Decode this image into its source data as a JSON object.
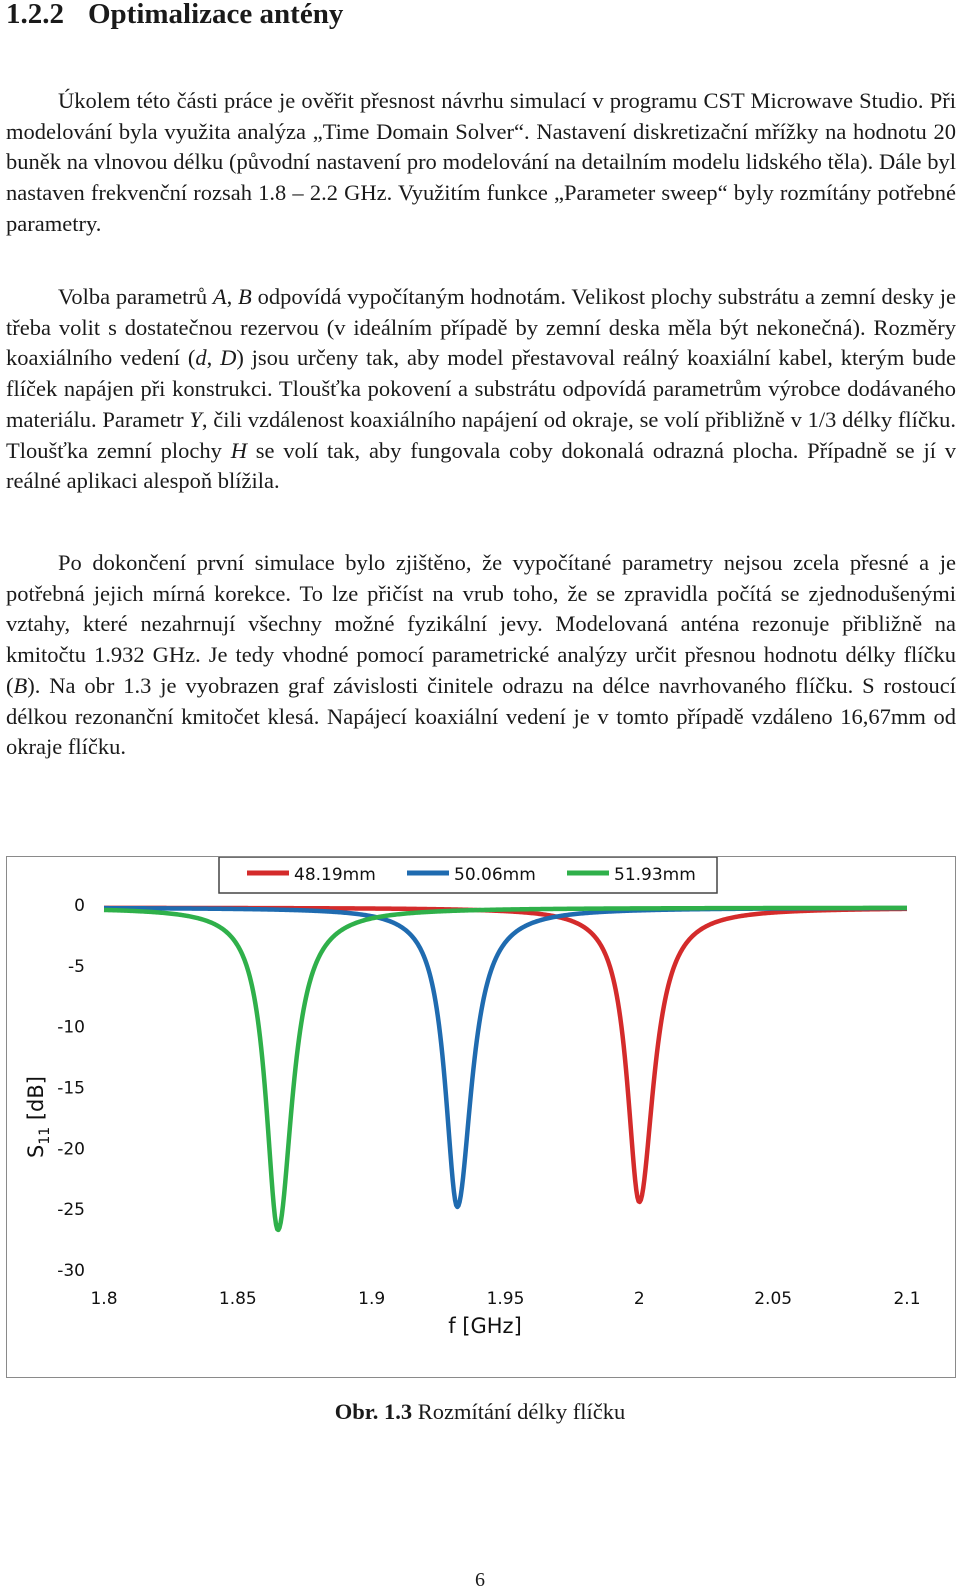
{
  "section": {
    "number": "1.2.2",
    "title": "Optimalizace antény"
  },
  "paragraphs": [
    [
      {
        "t": "Úkolem této části práce je ověřit přesnost návrhu simulací v programu CST Microwave Studio. Při modelování byla využita analýza „Time Domain Solver“. Nastavení diskretizační mřížky na hodnotu 20 buněk na vlnovou délku (původní nastavení pro modelování na detailním modelu lidského těla). Dále byl nastaven frekvenční rozsah 1.8 – 2.2 GHz. Využitím funkce „Parameter sweep“ byly rozmítány potřebné parametry."
      }
    ],
    [
      {
        "t": "Volba parametrů "
      },
      {
        "t": "A",
        "i": true
      },
      {
        "t": ", "
      },
      {
        "t": "B",
        "i": true
      },
      {
        "t": " odpovídá vypočítaným hodnotám. Velikost plochy substrátu a zemní desky je třeba volit s dostatečnou rezervou (v ideálním případě by zemní deska měla být nekonečná). Rozměry koaxiálního vedení ("
      },
      {
        "t": "d",
        "i": true
      },
      {
        "t": ", "
      },
      {
        "t": "D",
        "i": true
      },
      {
        "t": ") jsou určeny tak, aby model přestavoval reálný koaxiální kabel, kterým bude flíček napájen při konstrukci. Tloušťka pokovení a substrátu odpovídá parametrům výrobce dodávaného materiálu. Parametr "
      },
      {
        "t": "Y",
        "i": true
      },
      {
        "t": ", čili vzdálenost koaxiálního napájení od okraje, se volí přibližně v 1/3 délky flíčku. Tloušťka zemní plochy "
      },
      {
        "t": "H",
        "i": true
      },
      {
        "t": " se volí tak, aby fungovala coby dokonalá odrazná plocha. Případně se jí v reálné aplikaci alespoň blížila."
      }
    ],
    [
      {
        "t": "Po dokončení první simulace bylo zjištěno, že vypočítané parametry nejsou zcela přesné a je potřebná jejich mírná korekce. To lze přičíst na vrub toho, že se zpravidla počítá se zjednodušenými vztahy, které nezahrnují všechny možné fyzikální jevy. Modelovaná anténa rezonuje přibližně na kmitočtu 1.932 GHz. Je tedy vhodné pomocí parametrické analýzy určit přesnou hodnotu délky flíčku ("
      },
      {
        "t": "B",
        "i": true
      },
      {
        "t": "). Na obr 1.3 je vyobrazen graf závislosti činitele odrazu na délce navrhovaného flíčku. S rostoucí délkou rezonanční kmitočet klesá. Napájecí koaxiální vedení je v tomto případě vzdáleno 16,67mm od okraje flíčku."
      }
    ]
  ],
  "chart_data": {
    "type": "line",
    "title": "",
    "xlabel": "f [GHz]",
    "ylabel": {
      "main": "S",
      "sub": "11",
      "unit": " [dB]"
    },
    "xlim": [
      1.8,
      2.1
    ],
    "ylim": [
      -30,
      0
    ],
    "xticks": [
      "1.8",
      "1.85",
      "1.9",
      "1.95",
      "2",
      "2.05",
      "2.1"
    ],
    "yticks": [
      "0",
      "-5",
      "-10",
      "-15",
      "-20",
      "-25",
      "-30"
    ],
    "grid": false,
    "legend_position": "top",
    "series": [
      {
        "name": "48.19mm",
        "color": "#d42b2b",
        "resonance_f": 2.0,
        "min_db": -24.2,
        "x": [
          1.8,
          1.85,
          1.9,
          1.95,
          1.97,
          1.98,
          1.99,
          1.995,
          2.0,
          2.005,
          2.01,
          2.02,
          2.03,
          2.05,
          2.07,
          2.1
        ],
        "y": [
          -0.3,
          -0.5,
          -0.8,
          -1.8,
          -3.3,
          -5.0,
          -9.5,
          -14.5,
          -24.2,
          -14.5,
          -9.4,
          -4.8,
          -2.8,
          -1.3,
          -0.8,
          -0.4
        ]
      },
      {
        "name": "50.06mm",
        "color": "#1f6bb0",
        "resonance_f": 1.932,
        "min_db": -24.6,
        "x": [
          1.8,
          1.84,
          1.87,
          1.89,
          1.905,
          1.915,
          1.922,
          1.927,
          1.932,
          1.937,
          1.942,
          1.95,
          1.96,
          1.98,
          2.02,
          2.1
        ],
        "y": [
          -0.5,
          -1.2,
          -2.3,
          -3.8,
          -6.3,
          -10.0,
          -14.5,
          -19.0,
          -24.6,
          -17.5,
          -11.5,
          -6.2,
          -3.5,
          -1.5,
          -0.6,
          -0.3
        ]
      },
      {
        "name": "51.93mm",
        "color": "#2fb04a",
        "resonance_f": 1.865,
        "min_db": -26.5,
        "x": [
          1.8,
          1.82,
          1.835,
          1.845,
          1.852,
          1.858,
          1.862,
          1.865,
          1.868,
          1.872,
          1.878,
          1.885,
          1.895,
          1.91,
          1.95,
          2.0,
          2.1
        ],
        "y": [
          -1.0,
          -2.2,
          -4.2,
          -7.0,
          -10.5,
          -15.0,
          -20.0,
          -26.5,
          -20.0,
          -14.0,
          -8.5,
          -5.0,
          -2.8,
          -1.3,
          -0.5,
          -0.3,
          -0.2
        ]
      }
    ]
  },
  "caption": {
    "label": "Obr. 1.3",
    "text": " Rozmítání délky flíčku"
  },
  "page_number": "6"
}
